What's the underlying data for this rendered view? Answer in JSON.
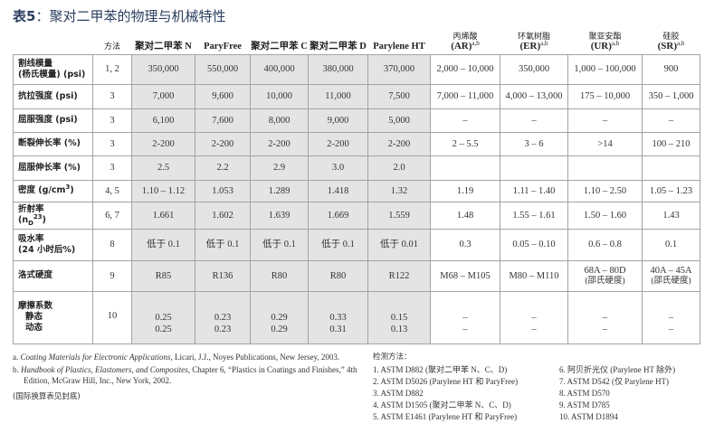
{
  "title": {
    "prefix": "表5",
    "text": "：聚对二甲苯的物理与机械特性"
  },
  "columns": [
    {
      "label": "方法"
    },
    {
      "label": "聚对二甲苯 N"
    },
    {
      "label": "ParyFree"
    },
    {
      "label": "聚对二甲苯 C"
    },
    {
      "label": "聚对二甲苯 D"
    },
    {
      "label": "Parylene HT"
    },
    {
      "cn": "丙烯酸",
      "en": "(AR)",
      "sup": "a,b"
    },
    {
      "cn": "环氧树脂",
      "en": "(ER)",
      "sup": "a,b"
    },
    {
      "cn": "聚亚安酯",
      "en": "(UR)",
      "sup": "a,b"
    },
    {
      "cn": "硅胶",
      "en": "(SR)",
      "sup": "a,b"
    }
  ],
  "rows": [
    {
      "label": "割线模量",
      "label2": "(杨氏模量) (psi)",
      "cells": [
        "1, 2",
        "350,000",
        "550,000",
        "400,000",
        "380,000",
        "370,000",
        "2,000 – 10,000",
        "350,000",
        "1,000 – 100,000",
        "900"
      ]
    },
    {
      "label": "抗拉强度 (psi)",
      "cells": [
        "3",
        "7,000",
        "9,600",
        "10,000",
        "11,000",
        "7,500",
        "7,000 – 11,000",
        "4,000 – 13,000",
        "175 – 10,000",
        "350 – 1,000"
      ]
    },
    {
      "label": "屈服强度 (psi)",
      "cells": [
        "3",
        "6,100",
        "7,600",
        "8,000",
        "9,000",
        "5,000",
        "–",
        "–",
        "–",
        "–"
      ]
    },
    {
      "label": "断裂伸长率 (%)",
      "cells": [
        "3",
        "2-200",
        "2-200",
        "2-200",
        "2-200",
        "2-200",
        "2 – 5.5",
        "3 – 6",
        ">14",
        "100 – 210"
      ]
    },
    {
      "label": "屈服伸长率 (%)",
      "cells": [
        "3",
        "2.5",
        "2.2",
        "2.9",
        "3.0",
        "2.0",
        "",
        "",
        "",
        ""
      ]
    },
    {
      "label": "密度 (g/cm",
      "label_sup": "3",
      "label_end": ")",
      "cells": [
        "4, 5",
        "1.10 – 1.12",
        "1.053",
        "1.289",
        "1.418",
        "1.32",
        "1.19",
        "1.11 – 1.40",
        "1.10 – 2.50",
        "1.05 – 1.23"
      ]
    },
    {
      "label": "折射率",
      "label2": "(n",
      "label2_sub": "D",
      "label2_sup": "23",
      "label2_end": ")",
      "cells": [
        "6, 7",
        "1.661",
        "1.602",
        "1.639",
        "1.669",
        "1.559",
        "1.48",
        "1.55 – 1.61",
        "1.50 – 1.60",
        "1.43"
      ]
    },
    {
      "label": "吸水率",
      "label2": "(24 小时后%)",
      "cells": [
        "8",
        "低于 0.1",
        "低于 0.1",
        "低于 0.1",
        "低于 0.1",
        "低于 0.01",
        "0.3",
        "0.05 – 0.10",
        "0.6 – 0.8",
        "0.1"
      ]
    },
    {
      "label": "洛式硬度",
      "cells": [
        "9",
        "R85",
        "R136",
        "R80",
        "R80",
        "R122",
        "M68 – M105",
        "M80 – M110",
        "68A – 80D",
        "40A – 45A"
      ],
      "sub_cells": [
        "",
        "",
        "",
        "",
        "",
        "",
        "",
        "",
        "(邵氏硬度)",
        "(邵氏硬度)"
      ]
    },
    {
      "label": "摩擦系数",
      "static": "静态",
      "dynamic": "动态",
      "method": "10",
      "static_vals": [
        "0.25",
        "0.23",
        "0.29",
        "0.33",
        "0.15",
        "–",
        "–",
        "–",
        "–"
      ],
      "dynamic_vals": [
        "0.25",
        "0.23",
        "0.29",
        "0.31",
        "0.13",
        "–",
        "–",
        "–",
        "–"
      ]
    }
  ],
  "notes": {
    "a": {
      "mark": "a.",
      "italic": "Coating Materials for Electronic Applications",
      "rest": ", Licari, J.J., Noyes Publications, New Jersey, 2003."
    },
    "b": {
      "mark": "b.",
      "italic": "Handbook of Plastics, Elastomers, and Composites",
      "rest": ", Chapter 6, “Plastics in Coatings and Finishes,” 4th Edition, McGraw Hill, Inc., New York, 2002."
    },
    "conversion": "(国际换算表见封底)"
  },
  "methods": {
    "heading": "检测方法：",
    "items": [
      "1.  ASTM D882 (聚对二甲苯 N、C、D)",
      "2.  ASTM D5026 (Parylene HT 和 ParyFree)",
      "3.  ASTM D882",
      "4.  ASTM D1505 (聚对二甲苯 N、C、D)",
      "5.  ASTM E1461 (Parylene HT 和 ParyFree)",
      "6.   阿贝折光仪 (Parylene HT 除外)",
      "7.  ASTM D542 (仅 Parylene HT)",
      "8.  ASTM D570",
      "9.  ASTM D785",
      "10. ASTM D1894"
    ]
  }
}
